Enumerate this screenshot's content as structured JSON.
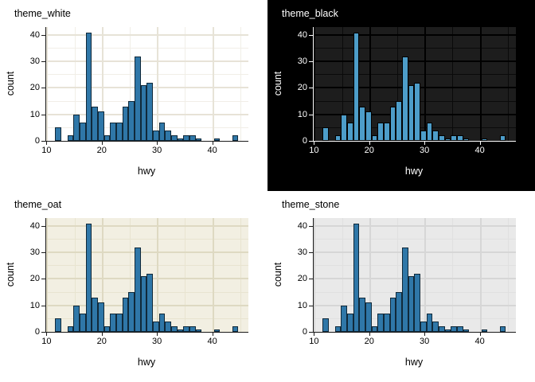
{
  "figure": {
    "description": "2x2 grid of identical histograms of hwy rendered with four different plot themes",
    "background": "#ffffff"
  },
  "chart_data": [
    {
      "type": "bar",
      "subtype": "histogram",
      "title": "theme_white",
      "xlabel": "hwy",
      "ylabel": "count",
      "bin_start": 12,
      "bin_width": 1.1034,
      "counts": [
        5,
        0,
        2,
        10,
        7,
        41,
        13,
        11,
        2,
        7,
        7,
        13,
        15,
        32,
        21,
        22,
        4,
        7,
        4,
        2,
        1,
        2,
        2,
        1,
        0,
        0,
        1,
        0,
        0,
        2
      ],
      "x_ticks": [
        10,
        20,
        30,
        40
      ],
      "x_minor_ticks": [
        15,
        25,
        35,
        45
      ],
      "y_ticks": [
        0,
        10,
        20,
        30,
        40
      ],
      "y_minor_ticks": [
        5,
        15,
        25,
        35
      ],
      "xlim": [
        9.8,
        46.4
      ],
      "ylim": [
        0,
        43
      ],
      "grid": true,
      "theme": {
        "outer_bg": "#ffffff",
        "panel_bg": "#ffffff",
        "grid_major": "#e7e3d7",
        "grid_minor": "#f1eee7",
        "axis_color": "#1a1a1a",
        "text_color": "#000000",
        "bar_fill": "#2f77a8",
        "bar_stroke": "#10293a"
      }
    },
    {
      "type": "bar",
      "subtype": "histogram",
      "title": "theme_black",
      "xlabel": "hwy",
      "ylabel": "count",
      "bin_start": 12,
      "bin_width": 1.1034,
      "counts": [
        5,
        0,
        2,
        10,
        7,
        41,
        13,
        11,
        2,
        7,
        7,
        13,
        15,
        32,
        21,
        22,
        4,
        7,
        4,
        2,
        1,
        2,
        2,
        1,
        0,
        0,
        1,
        0,
        0,
        2
      ],
      "x_ticks": [
        10,
        20,
        30,
        40
      ],
      "x_minor_ticks": [
        15,
        25,
        35,
        45
      ],
      "y_ticks": [
        0,
        10,
        20,
        30,
        40
      ],
      "y_minor_ticks": [
        5,
        15,
        25,
        35
      ],
      "xlim": [
        9.8,
        46.4
      ],
      "ylim": [
        0,
        43
      ],
      "grid": true,
      "theme": {
        "outer_bg": "#000000",
        "panel_bg": "#1d1d1d",
        "grid_major": "#000000",
        "grid_minor": "#0a0a0a",
        "axis_color": "#ffffff",
        "text_color": "#ffffff",
        "bar_fill": "#4d9dc9",
        "bar_stroke": "#000000"
      }
    },
    {
      "type": "bar",
      "subtype": "histogram",
      "title": "theme_oat",
      "xlabel": "hwy",
      "ylabel": "count",
      "bin_start": 12,
      "bin_width": 1.1034,
      "counts": [
        5,
        0,
        2,
        10,
        7,
        41,
        13,
        11,
        2,
        7,
        7,
        13,
        15,
        32,
        21,
        22,
        4,
        7,
        4,
        2,
        1,
        2,
        2,
        1,
        0,
        0,
        1,
        0,
        0,
        2
      ],
      "x_ticks": [
        10,
        20,
        30,
        40
      ],
      "x_minor_ticks": [
        15,
        25,
        35,
        45
      ],
      "y_ticks": [
        0,
        10,
        20,
        30,
        40
      ],
      "y_minor_ticks": [
        5,
        15,
        25,
        35
      ],
      "xlim": [
        9.8,
        46.4
      ],
      "ylim": [
        0,
        43
      ],
      "grid": true,
      "theme": {
        "outer_bg": "#ffffff",
        "panel_bg": "#f2efe2",
        "grid_major": "#ded9c2",
        "grid_minor": "#e8e4d0",
        "axis_color": "#1a1a1a",
        "text_color": "#000000",
        "bar_fill": "#2f77a8",
        "bar_stroke": "#10293a"
      }
    },
    {
      "type": "bar",
      "subtype": "histogram",
      "title": "theme_stone",
      "xlabel": "hwy",
      "ylabel": "count",
      "bin_start": 12,
      "bin_width": 1.1034,
      "counts": [
        5,
        0,
        2,
        10,
        7,
        41,
        13,
        11,
        2,
        7,
        7,
        13,
        15,
        32,
        21,
        22,
        4,
        7,
        4,
        2,
        1,
        2,
        2,
        1,
        0,
        0,
        1,
        0,
        0,
        2
      ],
      "x_ticks": [
        10,
        20,
        30,
        40
      ],
      "x_minor_ticks": [
        15,
        25,
        35,
        45
      ],
      "y_ticks": [
        0,
        10,
        20,
        30,
        40
      ],
      "y_minor_ticks": [
        5,
        15,
        25,
        35
      ],
      "xlim": [
        9.8,
        46.4
      ],
      "ylim": [
        0,
        43
      ],
      "grid": true,
      "theme": {
        "outer_bg": "#ffffff",
        "panel_bg": "#e9e9e9",
        "grid_major": "#d6d6d6",
        "grid_minor": "#e0e0e0",
        "axis_color": "#1a1a1a",
        "text_color": "#000000",
        "bar_fill": "#2f77a8",
        "bar_stroke": "#10293a"
      }
    }
  ]
}
